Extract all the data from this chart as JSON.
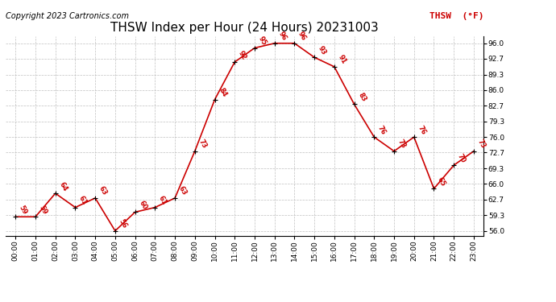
{
  "title": "THSW Index per Hour (24 Hours) 20231003",
  "copyright": "Copyright 2023 Cartronics.com",
  "legend_label": "THSW  (°F)",
  "hours": [
    0,
    1,
    2,
    3,
    4,
    5,
    6,
    7,
    8,
    9,
    10,
    11,
    12,
    13,
    14,
    15,
    16,
    17,
    18,
    19,
    20,
    21,
    22,
    23
  ],
  "values": [
    59,
    59,
    64,
    61,
    63,
    56,
    60,
    61,
    63,
    73,
    84,
    92,
    95,
    96,
    96,
    93,
    91,
    83,
    76,
    73,
    76,
    65,
    70,
    73
  ],
  "x_labels": [
    "00:00",
    "01:00",
    "02:00",
    "03:00",
    "04:00",
    "05:00",
    "06:00",
    "07:00",
    "08:00",
    "09:00",
    "10:00",
    "11:00",
    "12:00",
    "13:00",
    "14:00",
    "15:00",
    "16:00",
    "17:00",
    "18:00",
    "19:00",
    "20:00",
    "21:00",
    "22:00",
    "23:00"
  ],
  "y_ticks": [
    56.0,
    59.3,
    62.7,
    66.0,
    69.3,
    72.7,
    76.0,
    79.3,
    82.7,
    86.0,
    89.3,
    92.7,
    96.0
  ],
  "ylim": [
    55.0,
    97.5
  ],
  "xlim": [
    -0.5,
    23.5
  ],
  "line_color": "#cc0000",
  "marker_color": "#000000",
  "label_color": "#cc0000",
  "title_fontsize": 11,
  "copyright_fontsize": 7,
  "legend_fontsize": 8,
  "tick_fontsize": 6.5,
  "label_fontsize": 6,
  "grid_color": "#c0c0c0",
  "bg_color": "#ffffff"
}
